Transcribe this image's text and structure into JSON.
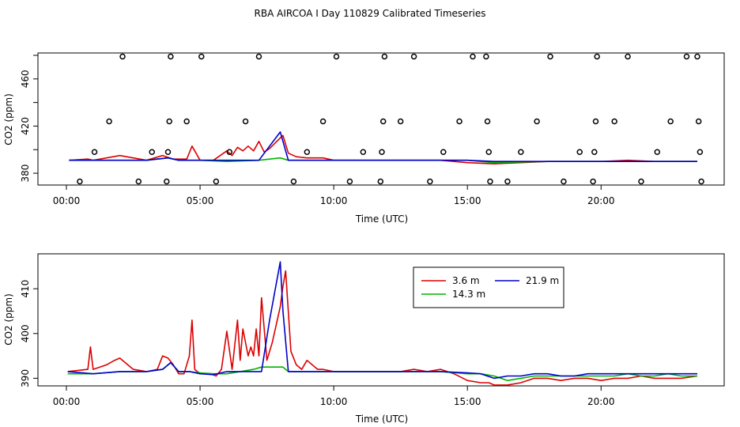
{
  "title": "RBA AIRCOA I  Day 110829  Calibrated Timeseries",
  "colors": {
    "s1": "#dd0000",
    "s2": "#00b300",
    "s3": "#0000cc",
    "axis": "#000000",
    "marker": "#000000"
  },
  "chart_data": [
    {
      "type": "scatter+line",
      "xlabel": "Time (UTC)",
      "ylabel": "CO2 (ppm)",
      "xlim": [
        0,
        24.5
      ],
      "ylim": [
        370,
        482
      ],
      "x_ticks": [
        0,
        5,
        10,
        15,
        20
      ],
      "x_tick_labels": [
        "00:00",
        "05:00",
        "10:00",
        "15:00",
        "20:00"
      ],
      "y_ticks": [
        380,
        420,
        460
      ],
      "y_tick_labels": [
        "380",
        "420",
        "460"
      ],
      "calibration_points": [
        {
          "x": 0.5,
          "y": 373
        },
        {
          "x": 1.05,
          "y": 398
        },
        {
          "x": 1.6,
          "y": 424
        },
        {
          "x": 2.1,
          "y": 479
        },
        {
          "x": 2.7,
          "y": 373
        },
        {
          "x": 3.2,
          "y": 398
        },
        {
          "x": 3.75,
          "y": 373
        },
        {
          "x": 3.8,
          "y": 398
        },
        {
          "x": 3.85,
          "y": 424
        },
        {
          "x": 3.9,
          "y": 479
        },
        {
          "x": 4.5,
          "y": 424
        },
        {
          "x": 5.05,
          "y": 479
        },
        {
          "x": 5.6,
          "y": 373
        },
        {
          "x": 6.1,
          "y": 398
        },
        {
          "x": 6.7,
          "y": 424
        },
        {
          "x": 7.2,
          "y": 479
        },
        {
          "x": 8.5,
          "y": 373
        },
        {
          "x": 9.0,
          "y": 398
        },
        {
          "x": 9.6,
          "y": 424
        },
        {
          "x": 10.1,
          "y": 479
        },
        {
          "x": 10.6,
          "y": 373
        },
        {
          "x": 11.1,
          "y": 398
        },
        {
          "x": 11.75,
          "y": 373
        },
        {
          "x": 11.8,
          "y": 398
        },
        {
          "x": 11.85,
          "y": 424
        },
        {
          "x": 11.9,
          "y": 479
        },
        {
          "x": 12.5,
          "y": 424
        },
        {
          "x": 13.0,
          "y": 479
        },
        {
          "x": 13.6,
          "y": 373
        },
        {
          "x": 14.1,
          "y": 398
        },
        {
          "x": 14.7,
          "y": 424
        },
        {
          "x": 15.2,
          "y": 479
        },
        {
          "x": 15.7,
          "y": 479
        },
        {
          "x": 15.75,
          "y": 424
        },
        {
          "x": 15.8,
          "y": 398
        },
        {
          "x": 15.85,
          "y": 373
        },
        {
          "x": 16.5,
          "y": 373
        },
        {
          "x": 17.0,
          "y": 398
        },
        {
          "x": 17.6,
          "y": 424
        },
        {
          "x": 18.1,
          "y": 479
        },
        {
          "x": 18.6,
          "y": 373
        },
        {
          "x": 19.2,
          "y": 398
        },
        {
          "x": 19.7,
          "y": 373
        },
        {
          "x": 19.75,
          "y": 398
        },
        {
          "x": 19.8,
          "y": 424
        },
        {
          "x": 19.85,
          "y": 479
        },
        {
          "x": 20.5,
          "y": 424
        },
        {
          "x": 21.0,
          "y": 479
        },
        {
          "x": 21.5,
          "y": 373
        },
        {
          "x": 22.1,
          "y": 398
        },
        {
          "x": 22.6,
          "y": 424
        },
        {
          "x": 23.2,
          "y": 479
        },
        {
          "x": 23.6,
          "y": 479
        },
        {
          "x": 23.65,
          "y": 424
        },
        {
          "x": 23.7,
          "y": 398
        },
        {
          "x": 23.75,
          "y": 373
        }
      ],
      "series": [
        {
          "name": "3.6 m",
          "color": "#dd0000",
          "x": [
            0.1,
            0.8,
            1.0,
            2.0,
            3.0,
            3.6,
            4.0,
            4.5,
            4.7,
            5.0,
            5.5,
            6.0,
            6.2,
            6.4,
            6.6,
            6.8,
            7.0,
            7.2,
            7.4,
            7.6,
            8.0,
            8.1,
            8.3,
            8.6,
            9.0,
            9.6,
            10.0,
            12.0,
            14.0,
            15.0,
            16.0,
            17.0,
            18.0,
            19.0,
            20.0,
            21.0,
            22.0,
            23.6
          ],
          "y": [
            391,
            392,
            391,
            395,
            391,
            395,
            392,
            392,
            403,
            391,
            391,
            399,
            395,
            402,
            399,
            403,
            399,
            407,
            398,
            401,
            410,
            412,
            397,
            394,
            393,
            393,
            391,
            391,
            391,
            389,
            388,
            389,
            390,
            390,
            390,
            391,
            390,
            390
          ]
        },
        {
          "name": "14.3 m",
          "color": "#00b300",
          "x": [
            0.1,
            1.0,
            3.0,
            3.8,
            4.2,
            5.0,
            6.0,
            7.2,
            8.0,
            8.3,
            9.0,
            12.0,
            15.0,
            16.0,
            18.0,
            20.0,
            23.6
          ],
          "y": [
            391,
            391,
            391,
            393,
            391,
            391,
            390,
            391,
            393,
            391,
            391,
            391,
            391,
            389,
            390,
            390,
            390
          ]
        },
        {
          "name": "21.9 m",
          "color": "#0000cc",
          "x": [
            0.1,
            1.0,
            3.0,
            3.8,
            4.2,
            5.0,
            6.0,
            7.2,
            8.0,
            8.3,
            9.0,
            12.0,
            15.0,
            16.0,
            18.0,
            20.0,
            23.6
          ],
          "y": [
            391,
            391,
            391,
            393,
            391,
            391,
            391,
            391,
            415,
            391,
            391,
            391,
            391,
            390,
            390,
            390,
            390
          ]
        }
      ]
    },
    {
      "type": "line",
      "xlabel": "Time (UTC)",
      "ylabel": "CO2 (ppm)",
      "xlim": [
        0,
        24.5
      ],
      "ylim": [
        388.3,
        417.8
      ],
      "x_ticks": [
        0,
        5,
        10,
        15,
        20
      ],
      "x_tick_labels": [
        "00:00",
        "05:00",
        "10:00",
        "15:00",
        "20:00"
      ],
      "y_ticks": [
        390,
        400,
        410
      ],
      "y_tick_labels": [
        "390",
        "400",
        "410"
      ],
      "legend": {
        "position": "top-right",
        "entries": [
          "3.6 m",
          "21.9 m",
          "14.3 m"
        ]
      },
      "series": [
        {
          "name": "3.6 m",
          "color": "#dd0000",
          "x": [
            0.05,
            0.8,
            0.9,
            1.0,
            1.5,
            1.8,
            2.0,
            2.5,
            3.0,
            3.4,
            3.6,
            3.8,
            4.0,
            4.2,
            4.4,
            4.6,
            4.7,
            4.8,
            5.0,
            5.4,
            5.6,
            5.8,
            6.0,
            6.2,
            6.4,
            6.5,
            6.6,
            6.8,
            6.9,
            7.0,
            7.1,
            7.2,
            7.3,
            7.5,
            7.7,
            8.0,
            8.1,
            8.2,
            8.4,
            8.6,
            8.8,
            9.0,
            9.4,
            9.6,
            10.0,
            11.0,
            12.0,
            12.5,
            13.0,
            13.5,
            14.0,
            14.5,
            15.0,
            15.5,
            15.8,
            16.0,
            16.5,
            17.0,
            17.5,
            18.0,
            18.5,
            19.0,
            19.5,
            20.0,
            20.5,
            21.0,
            21.5,
            22.0,
            22.5,
            23.0,
            23.6
          ],
          "y": [
            391.5,
            392,
            397,
            392,
            393,
            394,
            394.5,
            392,
            391.5,
            392,
            395,
            394.5,
            393,
            391,
            391,
            395,
            403,
            392,
            391,
            391,
            390.5,
            392,
            400.5,
            392,
            403,
            394,
            401,
            395,
            397,
            395,
            401,
            395,
            408,
            394,
            398,
            406,
            410.5,
            414,
            396,
            393,
            392,
            394,
            392,
            392,
            391.5,
            391.5,
            391.5,
            391.5,
            392,
            391.5,
            392,
            391,
            389.5,
            389,
            389,
            388.5,
            388.5,
            389,
            390,
            390,
            389.5,
            390,
            390,
            389.5,
            390,
            390,
            390.5,
            390,
            390,
            390,
            390.5
          ]
        },
        {
          "name": "14.3 m",
          "color": "#00b300",
          "x": [
            0.05,
            1.0,
            2.0,
            3.0,
            3.6,
            3.9,
            4.2,
            4.6,
            5.0,
            5.5,
            6.0,
            6.5,
            7.0,
            7.3,
            7.6,
            8.0,
            8.1,
            8.3,
            9.0,
            10.0,
            11.0,
            12.0,
            13.0,
            14.0,
            15.0,
            15.5,
            16.0,
            16.5,
            17.0,
            17.5,
            18.0,
            18.5,
            19.0,
            19.5,
            20.0,
            20.5,
            21.0,
            21.5,
            22.0,
            22.5,
            23.0,
            23.6
          ],
          "y": [
            391,
            391,
            391.5,
            391.5,
            392,
            393.5,
            391.5,
            391.5,
            391.2,
            391,
            391,
            391.5,
            392,
            392.5,
            392.5,
            392.5,
            392.5,
            391.5,
            391.5,
            391.5,
            391.5,
            391.5,
            391.5,
            391.5,
            391,
            391,
            390.5,
            389.5,
            390,
            390.5,
            390.5,
            390.5,
            390.5,
            390.5,
            390.5,
            390.5,
            391,
            390.5,
            390.5,
            391,
            390.5,
            390.5
          ]
        },
        {
          "name": "21.9 m",
          "color": "#0000cc",
          "x": [
            0.05,
            1.0,
            2.0,
            3.0,
            3.6,
            3.9,
            4.2,
            4.6,
            5.0,
            5.5,
            6.0,
            6.5,
            7.0,
            7.3,
            7.6,
            8.0,
            8.1,
            8.3,
            9.0,
            10.0,
            11.0,
            12.0,
            13.0,
            14.0,
            15.0,
            15.5,
            16.0,
            16.5,
            17.0,
            17.5,
            18.0,
            18.5,
            19.0,
            19.5,
            20.0,
            20.5,
            21.0,
            21.5,
            22.0,
            22.5,
            23.0,
            23.6
          ],
          "y": [
            391.5,
            391,
            391.5,
            391.5,
            392,
            393.5,
            391.5,
            391.5,
            391,
            390.8,
            391.5,
            391.5,
            391.5,
            391.5,
            403,
            416,
            405,
            391.5,
            391.5,
            391.5,
            391.5,
            391.5,
            391.5,
            391.5,
            391.2,
            391,
            390,
            390.5,
            390.5,
            391,
            391,
            390.5,
            390.5,
            391,
            391,
            391,
            391,
            391,
            391,
            391,
            391,
            391
          ]
        }
      ]
    }
  ]
}
